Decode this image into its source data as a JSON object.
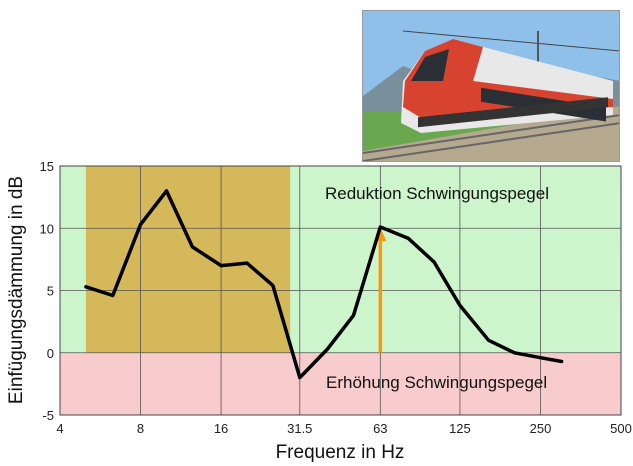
{
  "chart_data": {
    "type": "line",
    "xlabel": "Frequenz in Hz",
    "ylabel": "Einfügungsdämmung in dB",
    "x_scale": "log2",
    "xlim": [
      4,
      500
    ],
    "ylim": [
      -5,
      15
    ],
    "x_ticks": [
      4,
      8,
      16,
      31.5,
      63,
      125,
      250,
      500
    ],
    "x_tick_labels": [
      "4",
      "8",
      "16",
      "31.5",
      "63",
      "125",
      "250",
      "500"
    ],
    "y_ticks": [
      -5,
      0,
      5,
      10,
      15
    ],
    "y_tick_labels": [
      "-5",
      "0",
      "5",
      "10",
      "15"
    ],
    "grid": true,
    "series": [
      {
        "x": [
          5,
          6.3,
          8,
          10,
          12.5,
          16,
          20,
          25,
          31.5,
          40,
          50,
          63,
          80,
          100,
          125,
          160,
          200,
          250,
          300
        ],
        "y": [
          5.3,
          4.6,
          10.3,
          13.0,
          8.5,
          7.0,
          7.2,
          5.4,
          -2.0,
          0.3,
          3.0,
          10.1,
          9.2,
          7.3,
          3.8,
          1.0,
          0.0,
          -0.4,
          -0.7
        ],
        "color": "#000000"
      }
    ],
    "zones": [
      {
        "label": "Reduktion Schwingungspegel",
        "y_from": 0,
        "y_to": 15,
        "color": "#ccf5cc"
      },
      {
        "label": "Erhöhung Schwingungspegel",
        "y_from": -5,
        "y_to": 0,
        "color": "#f8cccc"
      }
    ],
    "highlight_band": {
      "x_from": 5,
      "x_to": 29,
      "color": "#d4b85a"
    },
    "arrow": {
      "x": 63,
      "y_from": 0,
      "y_to": 10.1,
      "color": "#f59a10"
    }
  },
  "photo": {
    "icon": "train-photo",
    "train_color": "#d8432f",
    "sky_color": "#8fc0ea"
  }
}
